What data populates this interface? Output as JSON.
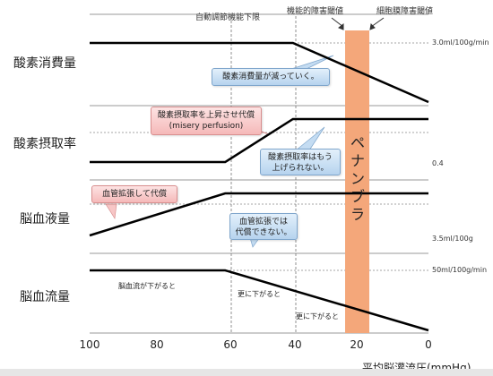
{
  "rows": [
    {
      "label": "酸素消費量"
    },
    {
      "label": "酸素摂取率"
    },
    {
      "label": "脳血液量"
    },
    {
      "label": "脳血流量"
    }
  ],
  "top_labels": {
    "autoregulation": "自動調節機能下限",
    "functional": "機能的障害閾値",
    "membrane": "細胞膜障害閾値"
  },
  "reference_labels": {
    "cmro2": "3.0ml/100g/min",
    "oef": "0.4",
    "cbv": "3.5ml/100g",
    "cbf": "50ml/100g/min"
  },
  "penumbra": {
    "label": "ペナンブラ",
    "color": "#f4a77a"
  },
  "callouts": {
    "oxygen_consumption": "酸素消費量が減っていく。",
    "extraction_line1": "酸素摂取率を上昇させ代償",
    "extraction_line2": "(misery perfusion)",
    "extraction_limit_line1": "酸素摂取率はもう",
    "extraction_limit_line2": "上げられない。",
    "vasodilation": "血管拡張して代償",
    "vasodilation_limit_line1": "血管拡張では",
    "vasodilation_limit_line2": "代償できない。"
  },
  "flow_notes": {
    "first": "脳血流が下がると",
    "second": "更に下がると",
    "third": "更に下がると"
  },
  "x_axis": {
    "title": "平均脳灌流圧(mmHg)",
    "ticks": [
      "100",
      "80",
      "60",
      "40",
      "20",
      "0"
    ]
  },
  "chart_data": {
    "type": "line",
    "x_axis_title": "平均脳灌流圧(mmHg)",
    "x_range": [
      100,
      0
    ],
    "thresholds": [
      60,
      40,
      20
    ],
    "penumbra_range": [
      23,
      16
    ],
    "series": [
      {
        "name": "酸素消費量",
        "x": [
          100,
          40,
          0
        ],
        "y": [
          3.0,
          3.0,
          1.0
        ]
      },
      {
        "name": "酸素摂取率",
        "x": [
          100,
          60,
          40,
          0
        ],
        "y": [
          0.3,
          0.3,
          0.6,
          0.6
        ]
      },
      {
        "name": "脳血液量",
        "x": [
          100,
          60,
          0
        ],
        "y": [
          3.0,
          4.2,
          4.2
        ]
      },
      {
        "name": "脳血流量",
        "x": [
          100,
          60,
          0
        ],
        "y": [
          50,
          50,
          0
        ]
      }
    ],
    "line_color": "#000000"
  }
}
